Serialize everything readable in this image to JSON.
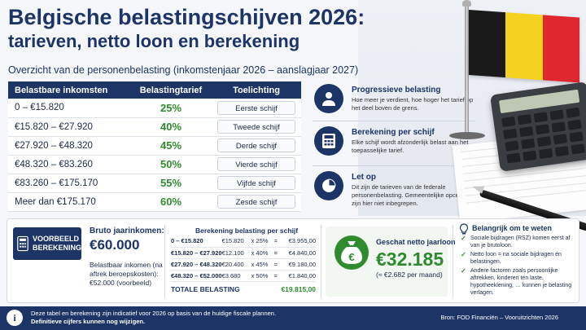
{
  "header": {
    "title_line1": "Belgische belastingschijven 2026:",
    "title_line2": "tarieven, netto loon en berekening",
    "subtitle": "Overzicht van de personenbelasting (inkomstenjaar 2026 – aanslagjaar 2027)"
  },
  "table": {
    "headers": [
      "Belastbare inkomsten",
      "Belastingtarief",
      "Toelichting"
    ],
    "rows": [
      {
        "income": "0 – €15.820",
        "rate": "25%",
        "note": "Eerste schijf"
      },
      {
        "income": "€15.820 – €27.920",
        "rate": "40%",
        "note": "Tweede schijf"
      },
      {
        "income": "€27.920 – €48.320",
        "rate": "45%",
        "note": "Derde schijf"
      },
      {
        "income": "€48.320 – €83.260",
        "rate": "50%",
        "note": "Vierde schijf"
      },
      {
        "income": "€83.260 – €175.170",
        "rate": "55%",
        "note": "Vijfde schijf"
      },
      {
        "income": "Meer dan €175.170",
        "rate": "60%",
        "note": "Zesde schijf"
      }
    ]
  },
  "info": [
    {
      "icon": "person-icon",
      "title": "Progressieve belasting",
      "text": "Hoe meer je verdient, hoe hoger het tarief op het deel boven de grens."
    },
    {
      "icon": "calculator-icon",
      "title": "Berekening per schijf",
      "text": "Elke schijf wordt afzonderlijk belast aan het toepasselijke tarief."
    },
    {
      "icon": "pie-chart-icon",
      "title": "Let op",
      "text": "Dit zijn de tarieven van de federale personenbelasting. Gemeentelijke opcentiemen zijn hier niet inbegrepen."
    }
  ],
  "example": {
    "badge_line1": "VOORBEELD",
    "badge_line2": "BEREKENING",
    "gross_label": "Bruto jaarinkomen:",
    "gross_value": "€60.000",
    "taxable_text": "Belastbaar inkomen (na aftrek beroepskosten): €52.000 (voorbeeld)"
  },
  "calculation": {
    "title": "Berekening belasting per schijf",
    "rows": [
      {
        "range": "0 – €15.820",
        "amount": "€15.820",
        "rate": "x 25%",
        "eq": "=",
        "result": "€3.955,00"
      },
      {
        "range": "€15.820 – €27.920",
        "amount": "€12.100",
        "rate": "x 40%",
        "eq": "=",
        "result": "€4.840,00"
      },
      {
        "range": "€27.920 – €48.320",
        "amount": "€20.400",
        "rate": "x 45%",
        "eq": "=",
        "result": "€9.180,00"
      },
      {
        "range": "€48.320 – €52.000",
        "amount": "€3.680",
        "rate": "x 50%",
        "eq": "=",
        "result": "€1.840,00"
      }
    ],
    "total_label": "TOTALE BELASTING",
    "total_value": "€19.815,00"
  },
  "netto": {
    "label": "Geschat netto jaarloon",
    "value": "€32.185",
    "monthly": "(≈ €2.682 per maand)"
  },
  "important": {
    "title": "Belangrijk om te weten",
    "items": [
      "Sociale bijdragen (RSZ) komen eerst af van je brutoloon.",
      "Netto loon = na sociale bijdragen én belastingen.",
      "Andere factoren zoals persoonlijke aftrekken, kinderen ten laste, hypotheeklening, … kunnen je belasting verlagen."
    ]
  },
  "footer": {
    "line1": "Deze tabel en berekening zijn indicatief voor 2026 op basis van de huidige fiscale plannen.",
    "line2": "Definitieve cijfers kunnen nog wijzigen.",
    "source": "Bron: FOD Financiën – Vooruitzichten 2026"
  },
  "colors": {
    "navy": "#1d3566",
    "green": "#2e8b2e",
    "flag_black": "#1a1a1a",
    "flag_yellow": "#f5d21f",
    "flag_red": "#e0262e"
  }
}
